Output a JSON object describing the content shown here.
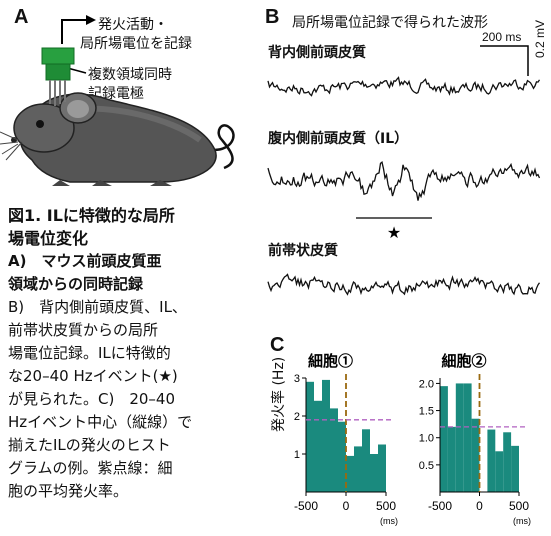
{
  "panelA": {
    "letter": "A",
    "arrow_label_line1": "発火活動・",
    "arrow_label_line2": "局所場電位を記録",
    "electrode_label_line1": "複数領域同時",
    "electrode_label_line2": "記録電極"
  },
  "panelB": {
    "letter": "B",
    "title": "局所場電位記録で得られた波形",
    "scale_time": "200 ms",
    "scale_voltage": "0.2 mV",
    "traces": [
      {
        "label": "背内側前頭皮質"
      },
      {
        "label": "腹内側前頭皮質（IL）"
      },
      {
        "label": "前帯状皮質"
      }
    ],
    "event_marker": "★"
  },
  "caption": {
    "title_line1": "図1. ILに特徴的な局所",
    "title_line2": "場電位変化",
    "lines": [
      "A)　マウス前頭皮質亜",
      "領域からの同時記録",
      "B)　背内側前頭皮質、IL、",
      "前帯状皮質からの局所",
      "場電位記録。ILに特徴的",
      "な20–40 Hzイベント(★)",
      "が見られた。C)　20–40",
      "Hzイベント中心（縦線）で",
      "揃えたILの発火のヒスト",
      "グラムの例。紫点線：細",
      "胞の平均発火率。"
    ]
  },
  "panelC": {
    "letter": "C",
    "ylabel": "発火率 (Hz)",
    "xunit": "(ms)",
    "colors": {
      "bar": "#1a8a7e",
      "event_line": "#9a6a10",
      "mean_line": "#b060c0"
    }
  },
  "chart_data": [
    {
      "type": "bar",
      "title": "細胞①",
      "xlabel": "(ms)",
      "ylabel": "発火率 (Hz)",
      "xlim": [
        -500,
        500
      ],
      "ylim": [
        0,
        3
      ],
      "xticks": [
        "-500",
        "0",
        "500"
      ],
      "yticks": [
        "1",
        "2",
        "3"
      ],
      "bin_starts": [
        -500,
        -400,
        -300,
        -200,
        -100,
        0,
        100,
        200,
        300,
        400
      ],
      "bin_width": 100,
      "values": [
        2.9,
        2.4,
        2.95,
        2.2,
        1.85,
        0.95,
        1.2,
        1.65,
        1.0,
        1.25
      ],
      "mean_rate": 1.9
    },
    {
      "type": "bar",
      "title": "細胞②",
      "xlabel": "(ms)",
      "ylabel": "発火率 (Hz)",
      "xlim": [
        -500,
        500
      ],
      "ylim": [
        0,
        2.1
      ],
      "xticks": [
        "-500",
        "0",
        "500"
      ],
      "yticks": [
        "0.5",
        "1.0",
        "1.5",
        "2.0"
      ],
      "bin_starts": [
        -500,
        -400,
        -300,
        -200,
        -100,
        0,
        100,
        200,
        300,
        400
      ],
      "bin_width": 100,
      "values": [
        1.95,
        1.2,
        2.0,
        2.0,
        1.35,
        0.0,
        1.15,
        0.75,
        1.1,
        0.85
      ],
      "mean_rate": 1.2
    }
  ]
}
